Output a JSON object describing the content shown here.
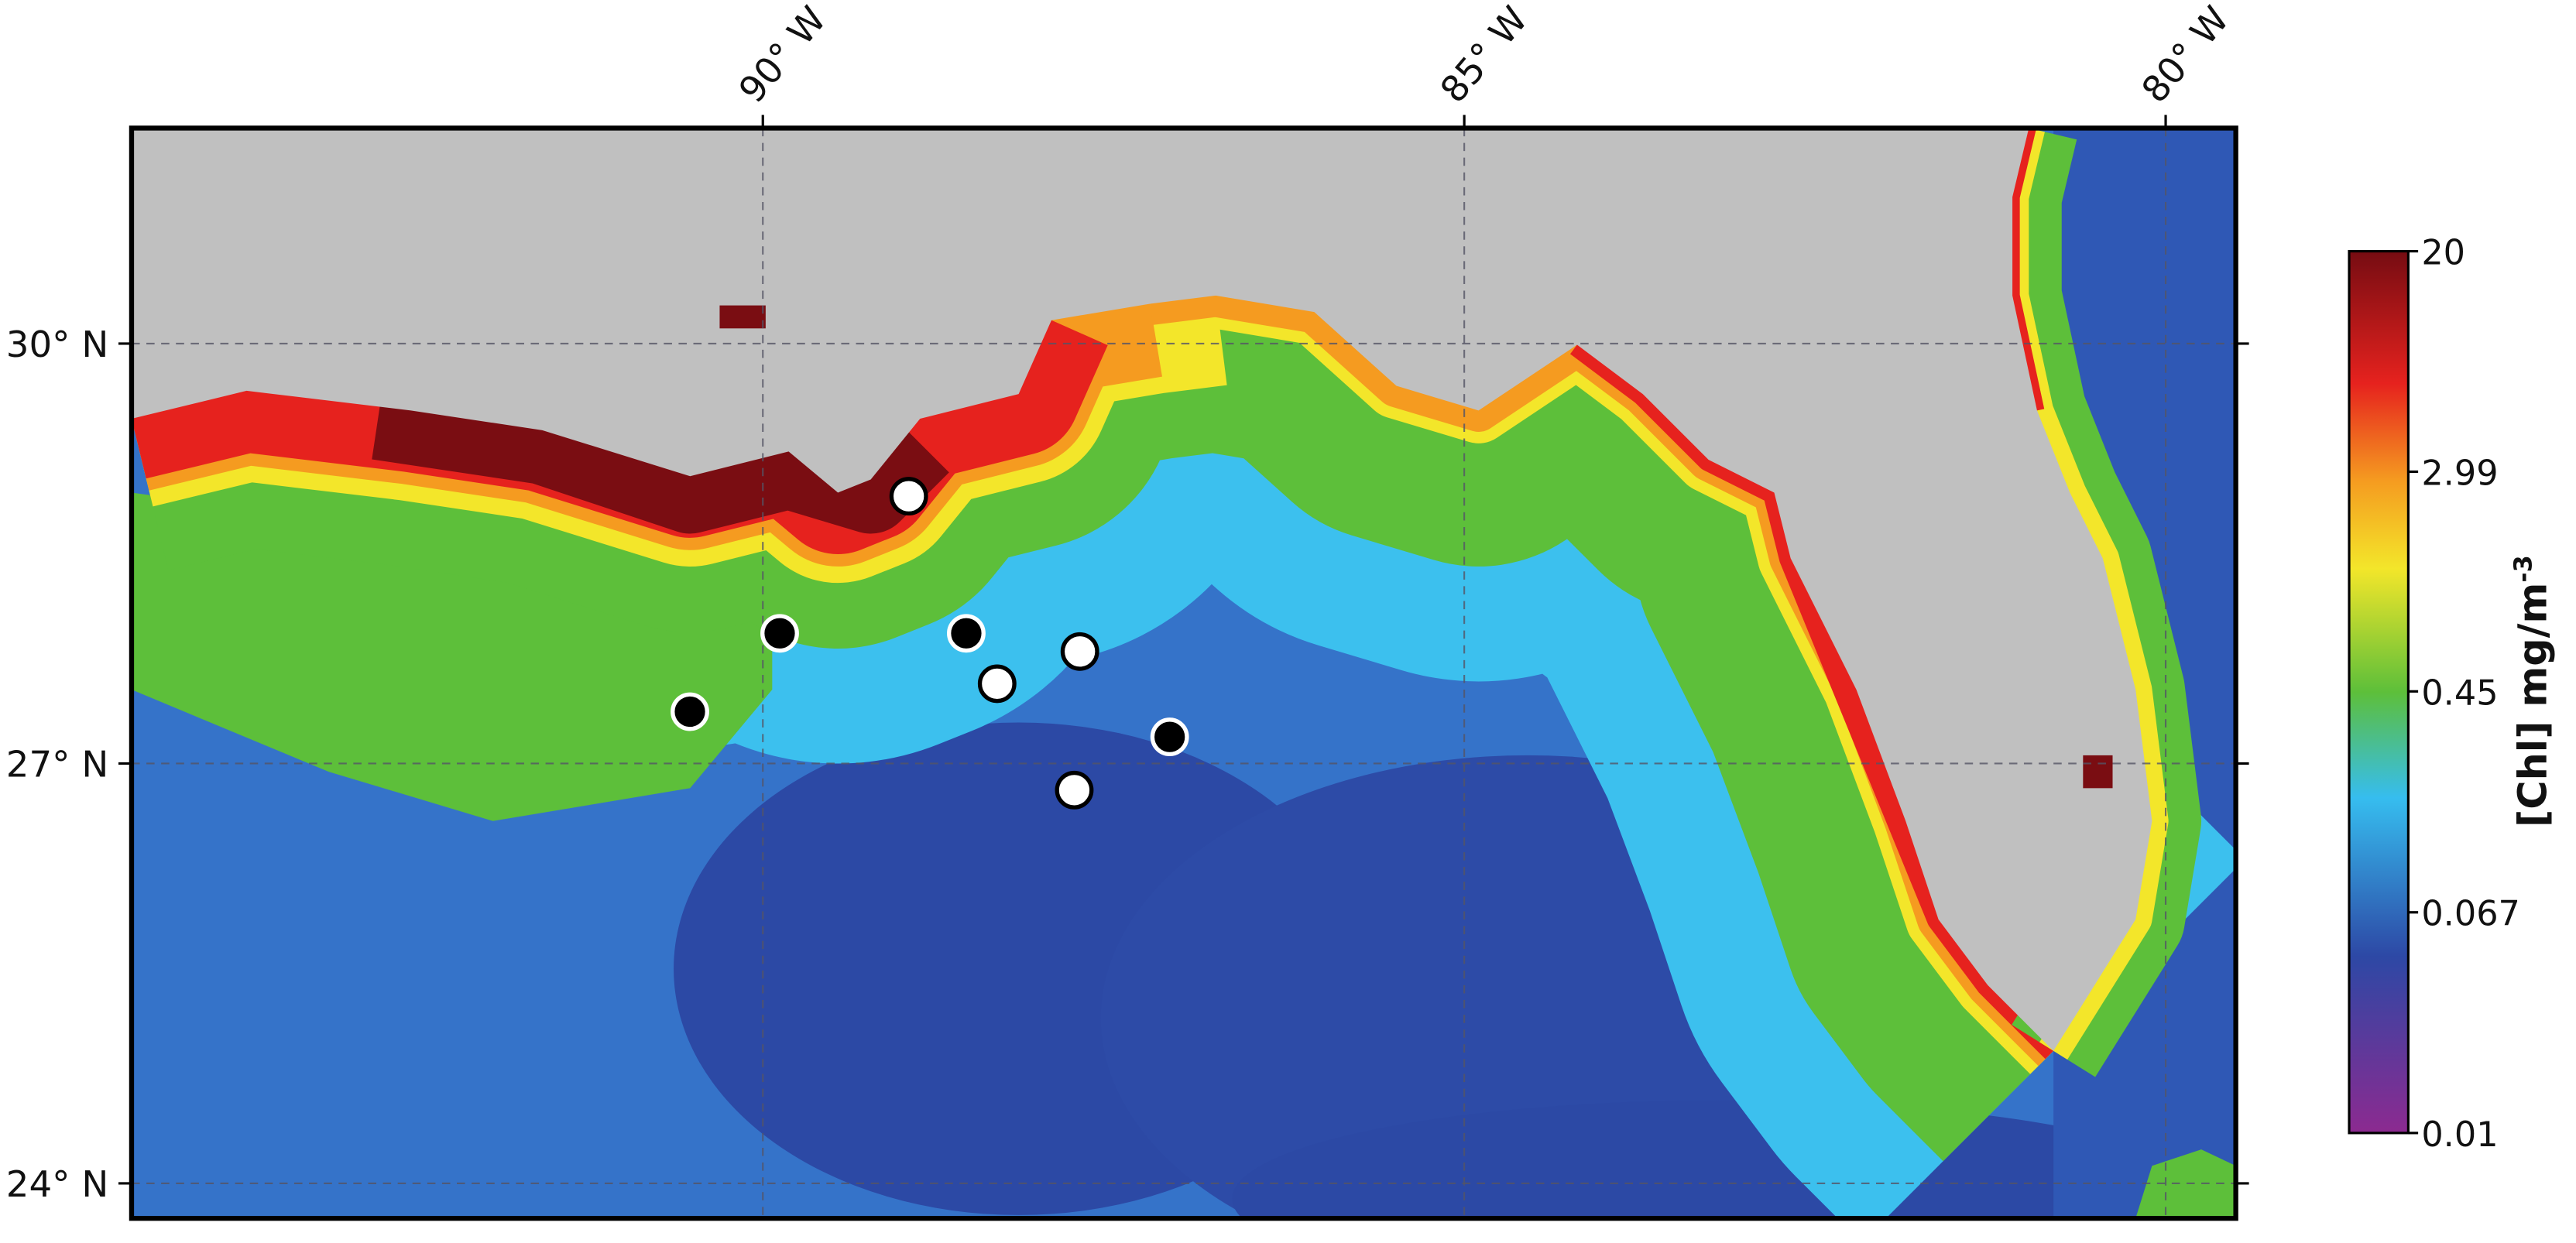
{
  "map": {
    "xlim": [
      -94.5,
      -79.5
    ],
    "ylim": [
      23.75,
      31.54
    ],
    "grid": true,
    "xticks": [
      {
        "value": -90,
        "label": "90° W"
      },
      {
        "value": -85,
        "label": "85° W"
      },
      {
        "value": -80,
        "label": "80° W"
      }
    ],
    "yticks": [
      {
        "value": 24,
        "label": "24° N"
      },
      {
        "value": 27,
        "label": "27° N"
      },
      {
        "value": 30,
        "label": "30° N"
      }
    ]
  },
  "stations": [
    {
      "lon": -88.96,
      "lat": 28.91,
      "fill": "#ffffff"
    },
    {
      "lon": -89.88,
      "lat": 27.93,
      "fill": "#000000"
    },
    {
      "lon": -88.55,
      "lat": 27.93,
      "fill": "#000000"
    },
    {
      "lon": -87.74,
      "lat": 27.8,
      "fill": "#ffffff"
    },
    {
      "lon": -88.33,
      "lat": 27.57,
      "fill": "#ffffff"
    },
    {
      "lon": -90.52,
      "lat": 27.37,
      "fill": "#000000"
    },
    {
      "lon": -87.1,
      "lat": 27.19,
      "fill": "#000000"
    },
    {
      "lon": -87.78,
      "lat": 26.81,
      "fill": "#ffffff"
    }
  ],
  "colorbar": {
    "label": "[Chl] mg/m",
    "label_sup": "-3",
    "lim": [
      0.01,
      20
    ],
    "log": true,
    "ticks": [
      0.01,
      0.067,
      0.45,
      2.99,
      20
    ]
  }
}
